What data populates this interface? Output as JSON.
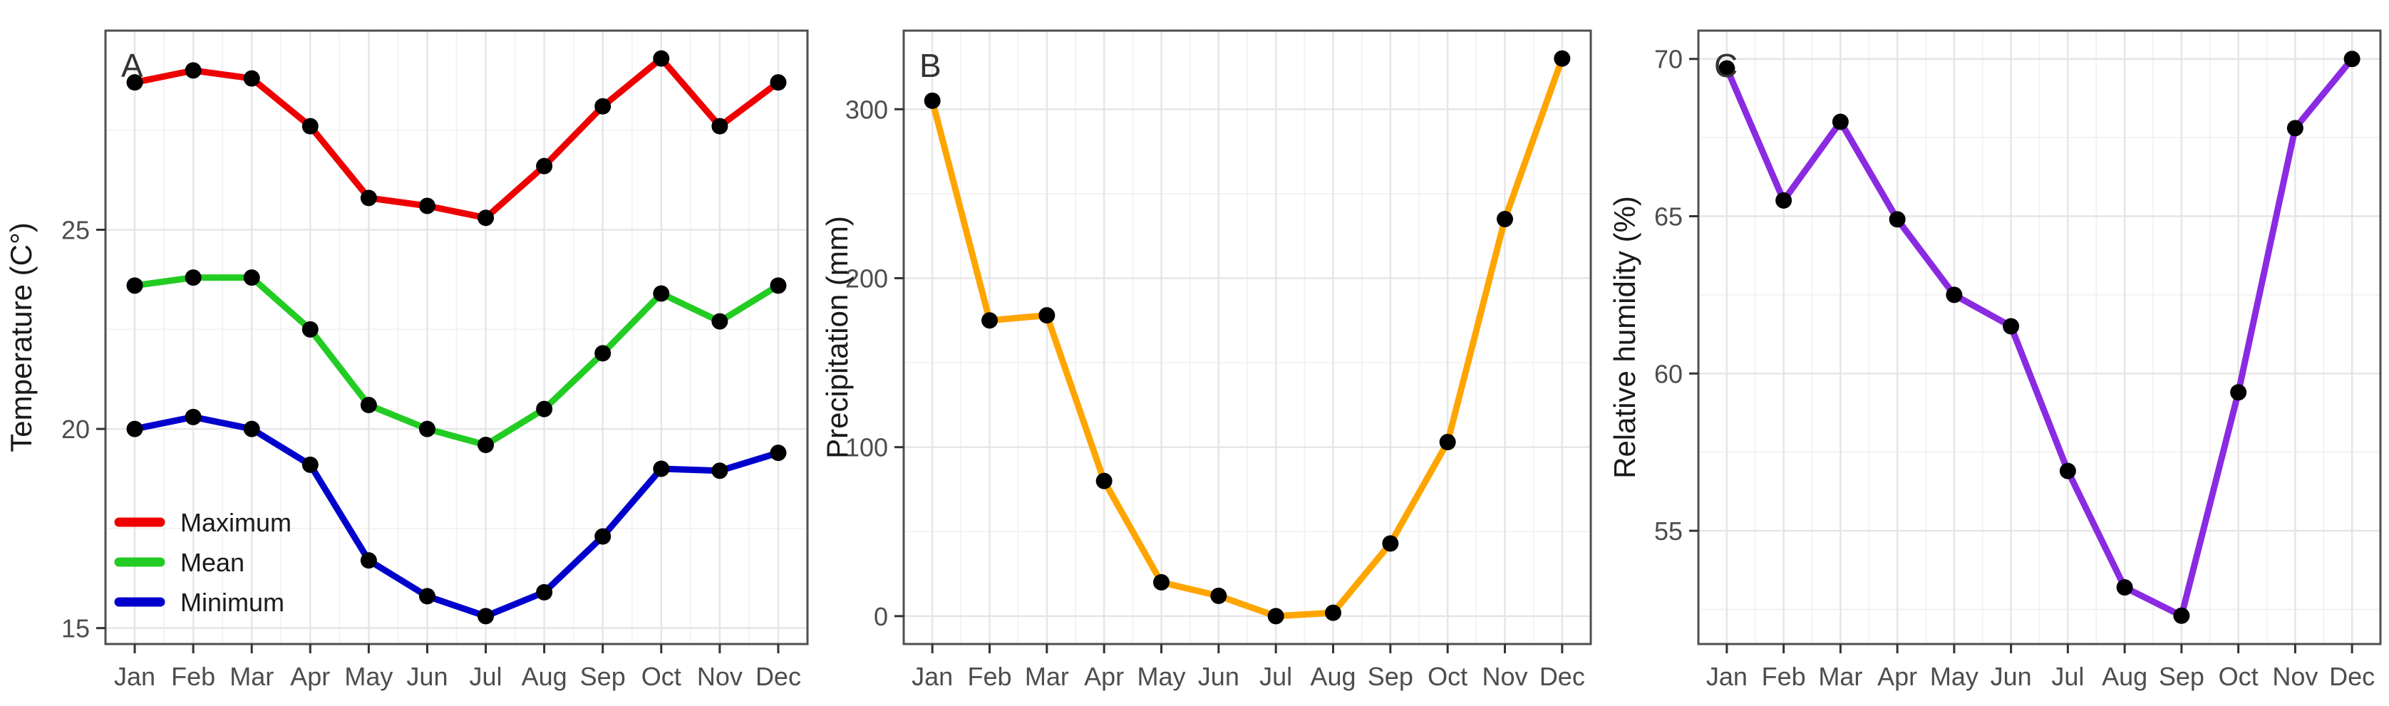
{
  "page": {
    "background": "#ffffff"
  },
  "months": [
    "Jan",
    "Feb",
    "Mar",
    "Apr",
    "May",
    "Jun",
    "Jul",
    "Aug",
    "Sep",
    "Oct",
    "Nov",
    "Dec"
  ],
  "chart_data": [
    {
      "type": "line",
      "panel_label": "A",
      "ylabel": "Temperature (C°)",
      "xlabel": "",
      "categories": [
        "Jan",
        "Feb",
        "Mar",
        "Apr",
        "May",
        "Jun",
        "Jul",
        "Aug",
        "Sep",
        "Oct",
        "Nov",
        "Dec"
      ],
      "ylim": [
        14.6,
        30.0
      ],
      "yticks": [
        15,
        20,
        25
      ],
      "yticks_minor": [
        17.5,
        22.5,
        27.5
      ],
      "grid": true,
      "legend_position": "inside-bottom-left",
      "point_color": "#000000",
      "series": [
        {
          "name": "Maximum",
          "color": "#EE0000",
          "values": [
            28.7,
            29.0,
            28.8,
            27.6,
            25.8,
            25.6,
            25.3,
            26.6,
            28.1,
            29.3,
            27.6,
            28.7
          ]
        },
        {
          "name": "Mean",
          "color": "#22CC22",
          "values": [
            23.6,
            23.8,
            23.8,
            22.5,
            20.6,
            20.0,
            19.6,
            20.5,
            21.9,
            23.4,
            22.7,
            23.6
          ]
        },
        {
          "name": "Minimum",
          "color": "#0000CD",
          "values": [
            20.0,
            20.3,
            20.0,
            19.1,
            16.7,
            15.8,
            15.3,
            15.9,
            17.3,
            19.0,
            18.95,
            19.4
          ]
        }
      ]
    },
    {
      "type": "line",
      "panel_label": "B",
      "ylabel": "Precipitation (mm)",
      "xlabel": "",
      "categories": [
        "Jan",
        "Feb",
        "Mar",
        "Apr",
        "May",
        "Jun",
        "Jul",
        "Aug",
        "Sep",
        "Oct",
        "Nov",
        "Dec"
      ],
      "ylim": [
        -16.5,
        346.5
      ],
      "yticks": [
        0,
        100,
        200,
        300
      ],
      "yticks_minor": [
        50,
        150,
        250
      ],
      "grid": true,
      "legend_position": "none",
      "point_color": "#000000",
      "series": [
        {
          "name": "Precipitation",
          "color": "#FFA500",
          "values": [
            305,
            175,
            178,
            80,
            20,
            12,
            0,
            2,
            43,
            103,
            235,
            330
          ]
        }
      ]
    },
    {
      "type": "line",
      "panel_label": "C",
      "ylabel": "Relative humidity (%)",
      "xlabel": "",
      "categories": [
        "Jan",
        "Feb",
        "Mar",
        "Apr",
        "May",
        "Jun",
        "Jul",
        "Aug",
        "Sep",
        "Oct",
        "Nov",
        "Dec"
      ],
      "ylim": [
        51.4,
        70.9
      ],
      "yticks": [
        55,
        60,
        65,
        70
      ],
      "yticks_minor": [
        52.5,
        57.5,
        62.5,
        67.5
      ],
      "grid": true,
      "legend_position": "none",
      "point_color": "#000000",
      "series": [
        {
          "name": "Relative humidity",
          "color": "#8A2BE2",
          "values": [
            69.7,
            65.5,
            68.0,
            64.9,
            62.5,
            61.5,
            56.9,
            53.2,
            52.3,
            59.4,
            67.8,
            70.0
          ]
        }
      ]
    }
  ],
  "style": {
    "grid_major": "#e5e5e5",
    "grid_minor": "#f2f2f2",
    "axis_border": "#4f4f4f",
    "tick_color": "#333333",
    "tick_text": "#4d4d4d",
    "title_text": "#1a1a1a",
    "legend_text": "#1a1a1a",
    "panel_letter": "#333333"
  }
}
